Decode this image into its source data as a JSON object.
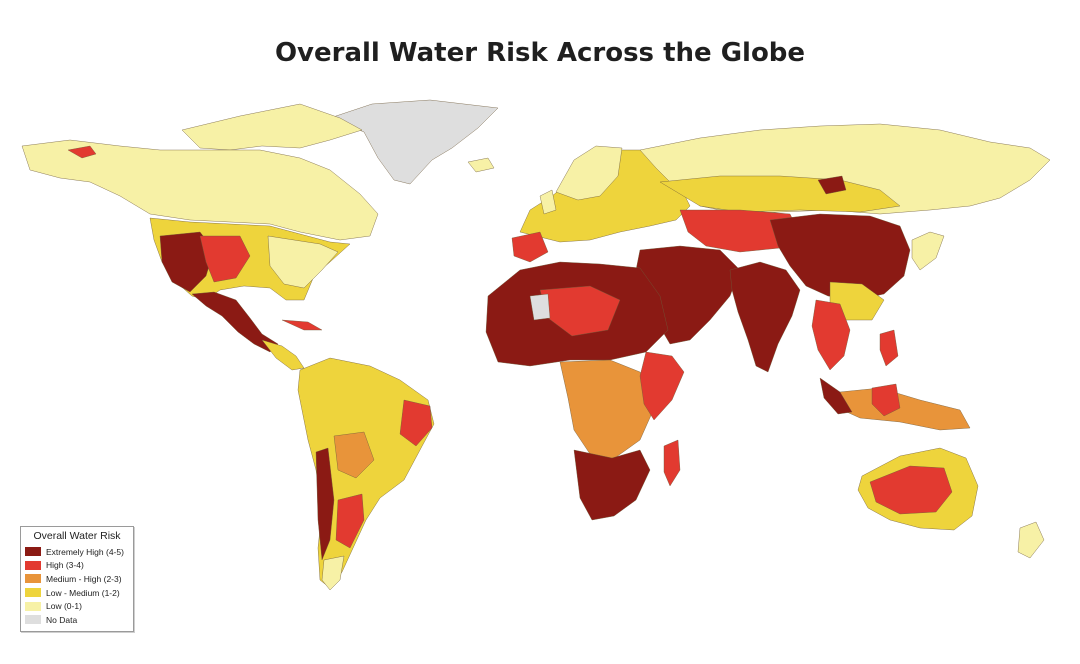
{
  "title": "Overall Water Risk Across the Globe",
  "legend": {
    "title": "Overall Water Risk",
    "items": [
      {
        "label": "Extremely High (4-5)",
        "color": "#8b1a14"
      },
      {
        "label": "High (3-4)",
        "color": "#e23a30"
      },
      {
        "label": "Medium - High (2-3)",
        "color": "#e8943a"
      },
      {
        "label": "Low - Medium (1-2)",
        "color": "#eed43c"
      },
      {
        "label": "Low (0-1)",
        "color": "#f7f1a6"
      },
      {
        "label": "No Data",
        "color": "#dedede"
      }
    ]
  }
}
